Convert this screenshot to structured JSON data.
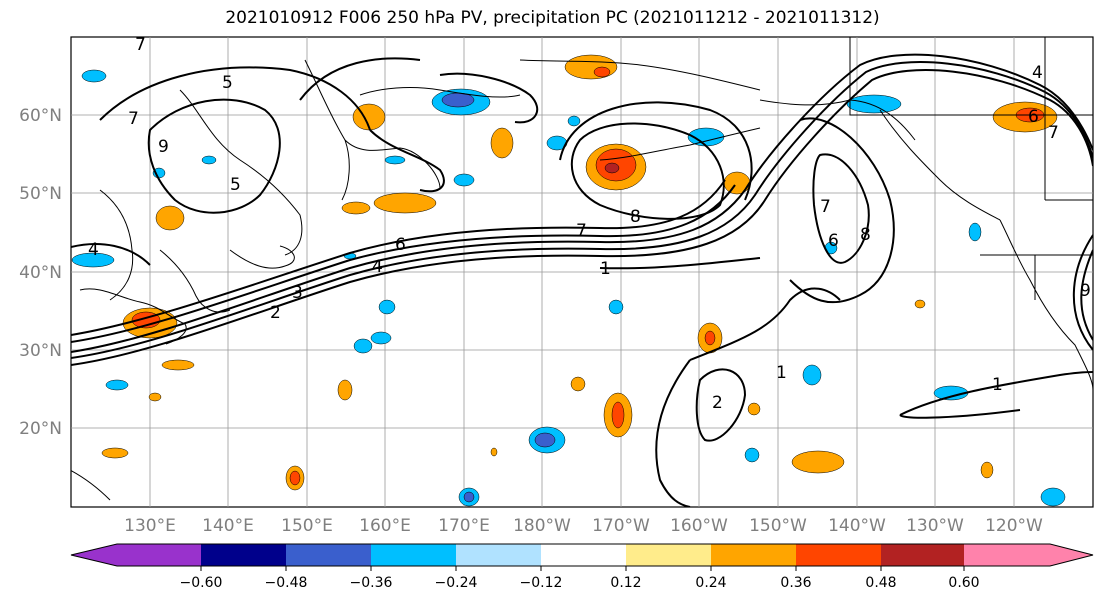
{
  "title": "2021010912 F006 250 hPa PV, precipitation PC (2021011212 - 2021011312)",
  "map": {
    "lat_labels": [
      {
        "lat": 60,
        "text": "60°N"
      },
      {
        "lat": 50,
        "text": "50°N"
      },
      {
        "lat": 40,
        "text": "40°N"
      },
      {
        "lat": 30,
        "text": "30°N"
      },
      {
        "lat": 20,
        "text": "20°N"
      }
    ],
    "lon_labels": [
      "130°E",
      "140°E",
      "150°E",
      "160°E",
      "170°E",
      "180°W",
      "170°W",
      "160°W",
      "150°W",
      "140°W",
      "130°W",
      "120°W"
    ],
    "contour_labels": [
      "7",
      "5",
      "9",
      "7",
      "5",
      "4",
      "6",
      "4",
      "3",
      "2",
      "7",
      "8",
      "1",
      "1",
      "2",
      "1",
      "7",
      "8",
      "6",
      "4",
      "6",
      "7",
      "9"
    ]
  },
  "colorbar": {
    "colors": [
      "#9932cc",
      "#00008b",
      "#3a5fcd",
      "#00bfff",
      "#b0e2ff",
      "#ffffff",
      "#ffec8b",
      "#ffa500",
      "#ff4500",
      "#b22222",
      "#ff82ab"
    ],
    "ticks": [
      "−0.60",
      "−0.48",
      "−0.36",
      "−0.24",
      "−0.12",
      "0.12",
      "0.24",
      "0.36",
      "0.48",
      "0.60"
    ]
  }
}
